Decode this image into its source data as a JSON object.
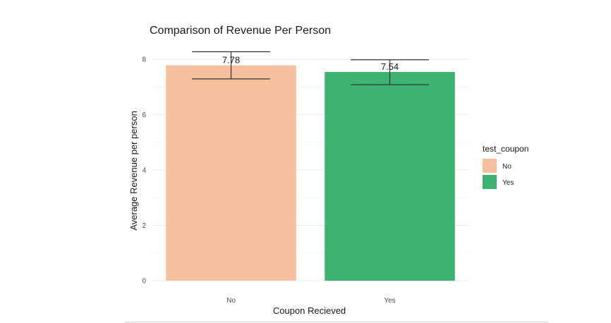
{
  "chart_data": {
    "type": "bar",
    "title": "Comparison of Revenue Per Person",
    "xlabel": "Coupon Recieved",
    "ylabel": "Average Revenue per person",
    "categories": [
      "No",
      "Yes"
    ],
    "values": [
      7.78,
      7.54
    ],
    "data_labels": [
      "7.78",
      "7.54"
    ],
    "error_bars": [
      {
        "low": 7.29,
        "high": 8.27
      },
      {
        "low": 7.08,
        "high": 7.98
      }
    ],
    "colors": [
      "#F4C09E",
      "#3CB371"
    ],
    "ylim": [
      0,
      8.4
    ],
    "yticks": [
      0,
      2,
      4,
      6,
      8
    ],
    "grid": true,
    "legend": {
      "title": "test_coupon",
      "position": "right",
      "entries": [
        {
          "label": "No",
          "color": "#F4C09E"
        },
        {
          "label": "Yes",
          "color": "#3CB371"
        }
      ]
    }
  }
}
